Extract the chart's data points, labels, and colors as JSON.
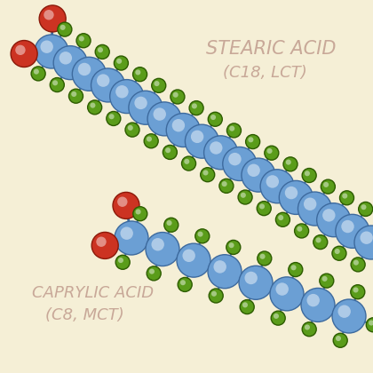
{
  "bg_color": "#f5efd6",
  "blue_color": "#6b9fd4",
  "blue_edge": "#3d6a9e",
  "blue_highlight": "#a8c8e8",
  "red_color": "#cc3322",
  "red_edge": "#8b1a0a",
  "red_highlight": "#e87060",
  "green_color": "#5a9c1a",
  "green_edge": "#2d5c00",
  "green_highlight": "#8ed44a",
  "bond_color": "#3d6a9e",
  "text_color": "#c8a898",
  "title1": "STEARIC ACID",
  "title1b": "(C18, LCT)",
  "title2": "CAPRYLIC ACID",
  "title2b": "(C8, MCT)",
  "stearic_n": 18,
  "caprylic_n": 8,
  "figsize": [
    4.2,
    4.2
  ],
  "dpi": 100
}
